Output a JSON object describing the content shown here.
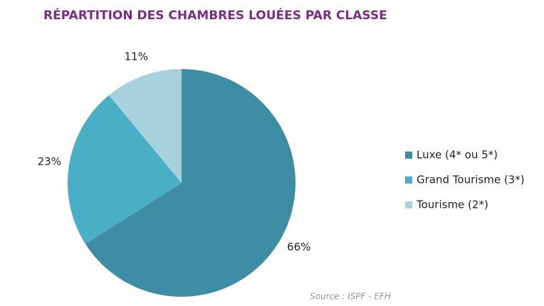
{
  "chart_data": {
    "type": "pie",
    "title": "RÉPARTITION DES CHAMBRES LOUÉES PAR CLASSE",
    "categories": [
      "Luxe (4* ou 5*)",
      "Grand Tourisme (3*)",
      "Tourisme (2*)"
    ],
    "values": [
      66,
      23,
      11
    ],
    "value_labels": [
      "66%",
      "23%",
      "11%"
    ],
    "colors": [
      "#3d8da4",
      "#4aaec6",
      "#a8d1de"
    ],
    "legend": "right",
    "source": "Source : ISPF - EFH"
  }
}
